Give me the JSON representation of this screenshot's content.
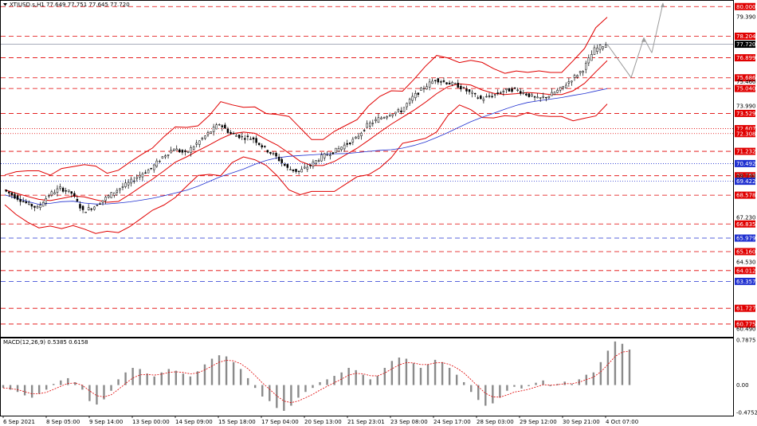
{
  "header": {
    "symbol": "XTIUSD.s,H1",
    "ohlc": "77.649 77.751 77.645 77.720",
    "macd_title": "MACD(12,26,9) 0.5385 0.6158"
  },
  "colors": {
    "candle": "#000000",
    "bollinger": "#e00000",
    "ma": "#2030d0",
    "resistance_label": "#e00000",
    "support_label": "#2030d0",
    "current_label": "#000000",
    "projection": "#9a9a9a",
    "macd_bar": "#8a8a8a",
    "macd_signal": "#e00000"
  },
  "chart_data": [
    {
      "type": "candlestick",
      "title": "",
      "ylim": [
        60.0,
        80.35
      ],
      "x": [
        "6 Sep 2021",
        "8 Sep 05:00",
        "9 Sep 14:00",
        "13 Sep 00:00",
        "14 Sep 09:00",
        "15 Sep 18:00",
        "17 Sep 04:00",
        "20 Sep 13:00",
        "21 Sep 23:01",
        "23 Sep 08:00",
        "24 Sep 17:00",
        "28 Sep 03:00",
        "29 Sep 12:00",
        "30 Sep 21:00",
        "4 Oct 07:00"
      ],
      "y_ticks": [
        "79.390",
        "75.460",
        "73.990",
        "69.730",
        "67.230",
        "64.530",
        "60.490"
      ],
      "close_series": [
        68.9,
        68.5,
        68.1,
        67.8,
        68.6,
        69.0,
        68.7,
        67.6,
        67.9,
        68.4,
        68.9,
        69.3,
        69.8,
        70.2,
        70.9,
        71.4,
        71.1,
        71.7,
        72.3,
        72.9,
        72.3,
        72.1,
        72.0,
        71.4,
        70.9,
        70.2,
        70.0,
        70.4,
        70.9,
        71.2,
        71.6,
        72.0,
        72.8,
        73.2,
        73.5,
        73.7,
        74.5,
        75.1,
        75.6,
        75.4,
        75.2,
        74.8,
        74.4,
        74.6,
        74.9,
        75.0,
        74.7,
        74.4,
        74.6,
        75.0,
        75.6,
        76.2,
        77.4,
        77.72
      ],
      "price_levels": [
        {
          "value": "80.000",
          "style": "dashed",
          "role": "resistance"
        },
        {
          "value": "78.204",
          "style": "dashed",
          "role": "resistance"
        },
        {
          "value": "77.720",
          "style": "current",
          "role": "current"
        },
        {
          "value": "76.899",
          "style": "dashed",
          "role": "resistance"
        },
        {
          "value": "75.686",
          "style": "dashed",
          "role": "resistance"
        },
        {
          "value": "75.040",
          "style": "dashed",
          "role": "resistance"
        },
        {
          "value": "73.529",
          "style": "dashed",
          "role": "resistance"
        },
        {
          "value": "72.607",
          "style": "dotted",
          "role": "resistance"
        },
        {
          "value": "72.308",
          "style": "dotted",
          "role": "resistance"
        },
        {
          "value": "71.232",
          "style": "dashed",
          "role": "resistance"
        },
        {
          "value": "70.492",
          "style": "dotted",
          "role": "support"
        },
        {
          "value": "69.755",
          "style": "dashed",
          "role": "resistance"
        },
        {
          "value": "69.422",
          "style": "dotted",
          "role": "support"
        },
        {
          "value": "68.578",
          "style": "dashed",
          "role": "resistance"
        },
        {
          "value": "66.835",
          "style": "dashed",
          "role": "resistance"
        },
        {
          "value": "65.979",
          "style": "dashed",
          "role": "support"
        },
        {
          "value": "65.160",
          "style": "dashed",
          "role": "resistance"
        },
        {
          "value": "64.012",
          "style": "dashed",
          "role": "resistance"
        },
        {
          "value": "63.357",
          "style": "dashed",
          "role": "support"
        },
        {
          "value": "61.727",
          "style": "dashed",
          "role": "resistance"
        },
        {
          "value": "60.775",
          "style": "dashed",
          "role": "resistance"
        }
      ]
    },
    {
      "type": "bar",
      "title": "",
      "ylim": [
        -0.52,
        0.8
      ],
      "y_ticks": [
        "0.7875",
        "0.00",
        "-0.4752"
      ],
      "values": [
        -0.05,
        -0.08,
        -0.12,
        -0.18,
        -0.22,
        -0.15,
        -0.08,
        0.02,
        0.08,
        0.12,
        0.05,
        -0.08,
        -0.28,
        -0.34,
        -0.25,
        -0.1,
        0.1,
        0.22,
        0.3,
        0.28,
        0.2,
        0.15,
        0.22,
        0.28,
        0.25,
        0.2,
        0.15,
        0.24,
        0.36,
        0.46,
        0.52,
        0.5,
        0.4,
        0.28,
        0.12,
        -0.05,
        -0.2,
        -0.28,
        -0.4,
        -0.45,
        -0.36,
        -0.22,
        -0.12,
        -0.05,
        0.05,
        0.1,
        0.16,
        0.22,
        0.3,
        0.26,
        0.18,
        0.1,
        0.16,
        0.3,
        0.42,
        0.48,
        0.46,
        0.38,
        0.3,
        0.36,
        0.44,
        0.4,
        0.3,
        0.18,
        0.05,
        -0.12,
        -0.26,
        -0.36,
        -0.32,
        -0.22,
        -0.1,
        -0.03,
        -0.06,
        -0.02,
        0.04,
        0.08,
        -0.02,
        0.02,
        0.06,
        0.02,
        0.1,
        0.18,
        0.22,
        0.4,
        0.6,
        0.76,
        0.72,
        0.62
      ]
    }
  ]
}
